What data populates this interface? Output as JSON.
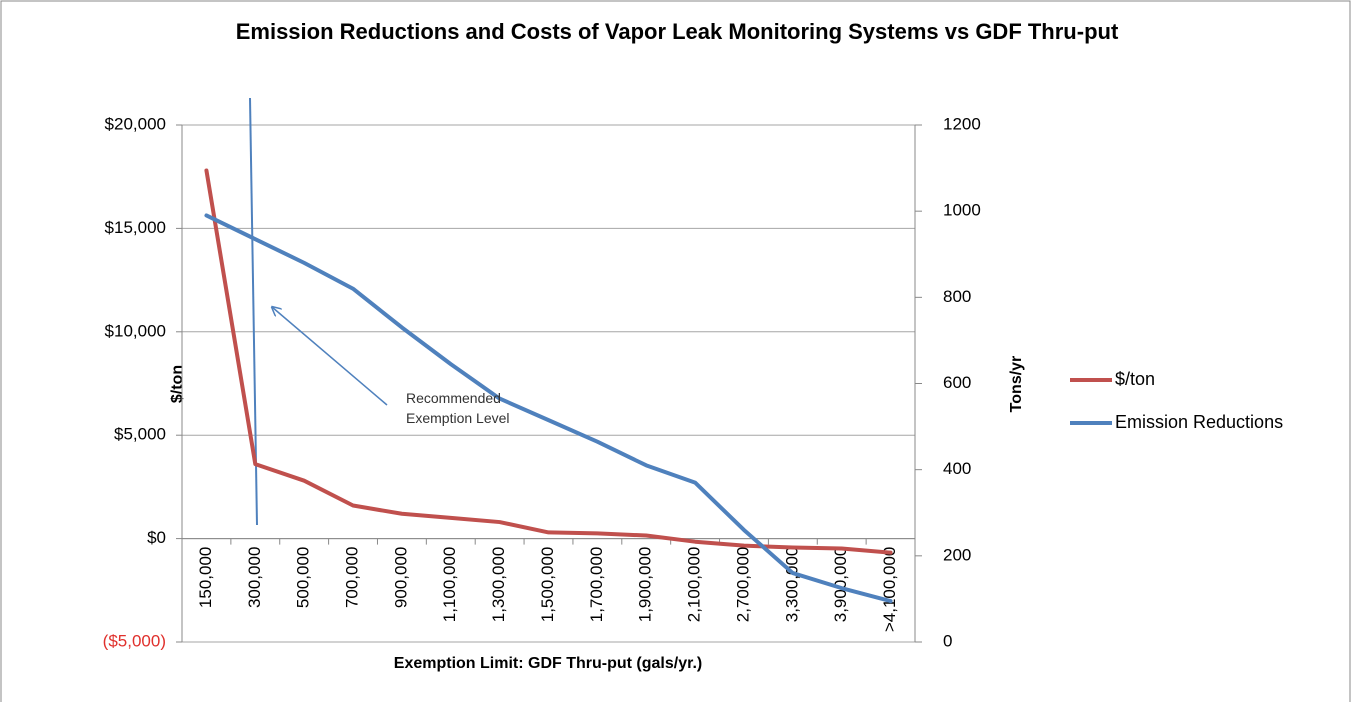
{
  "chart_data": {
    "type": "line",
    "title": "Emission Reductions and Costs of Vapor Leak Monitoring Systems vs GDF Thru-put",
    "x_label": "Exemption Limit: GDF Thru-put  (gals/yr.)",
    "y_label": "$/ton",
    "y2_label": "Tons/yr",
    "annotation": "Recommended Exemption Level",
    "categories": [
      "150,000",
      "300,000",
      "500,000",
      "700,000",
      "900,000",
      "1,100,000",
      "1,300,000",
      "1,500,000",
      "1,700,000",
      "1,900,000",
      "2,100,000",
      "2,700,000",
      "3,300,000",
      "3,900,000",
      ">4,100,000"
    ],
    "series": [
      {
        "name": "$/ton",
        "color": "#c0504d",
        "axis": "y",
        "values": [
          17800,
          3600,
          2800,
          1600,
          1200,
          1000,
          800,
          300,
          250,
          150,
          -150,
          -340,
          -430,
          -480,
          -680
        ]
      },
      {
        "name": "Emission Reductions",
        "color": "#4f81bd",
        "axis": "y2",
        "values": [
          990,
          935,
          880,
          820,
          730,
          645,
          565,
          515,
          465,
          410,
          370,
          260,
          160,
          125,
          95
        ]
      }
    ],
    "ylim": [
      -5000,
      20000
    ],
    "yticks": [
      {
        "value": -5000,
        "label": "($5,000)"
      },
      {
        "value": 0,
        "label": "$0"
      },
      {
        "value": 5000,
        "label": "$5,000"
      },
      {
        "value": 10000,
        "label": "$10,000"
      },
      {
        "value": 15000,
        "label": "$15,000"
      },
      {
        "value": 20000,
        "label": "$20,000"
      }
    ],
    "negative_tick_color": "#e0302c",
    "y2lim": [
      0,
      1200
    ],
    "y2ticks": [
      0,
      200,
      400,
      600,
      800,
      1000,
      1200
    ],
    "grid": true,
    "legend": "right"
  }
}
